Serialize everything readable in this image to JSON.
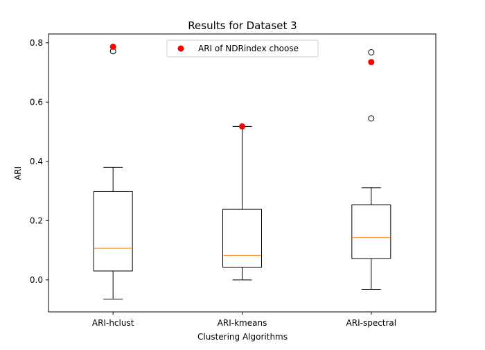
{
  "chart_data": {
    "type": "box",
    "title": "Results for Dataset 3",
    "xlabel": "Clustering Algorithms",
    "ylabel": "ARI",
    "ylim": [
      -0.108,
      0.83
    ],
    "yticks": [
      0.0,
      0.2,
      0.4,
      0.6,
      0.8
    ],
    "ytick_labels": [
      "0.0",
      "0.2",
      "0.4",
      "0.6",
      "0.8"
    ],
    "grid": false,
    "legend_position": "top-center",
    "legend": [
      {
        "label": "ARI of NDRindex choose",
        "marker": "circle",
        "color": "#ff0000"
      }
    ],
    "box_color": "#000000",
    "median_color": "#ff7f0e",
    "categories": [
      "ARI-hclust",
      "ARI-kmeans",
      "ARI-spectral"
    ],
    "boxes": [
      {
        "category": "ARI-hclust",
        "whisker_low": -0.065,
        "q1": 0.03,
        "median": 0.107,
        "q3": 0.298,
        "whisker_high": 0.38,
        "outliers": [
          0.772
        ],
        "highlight": 0.787
      },
      {
        "category": "ARI-kmeans",
        "whisker_low": 0.0,
        "q1": 0.043,
        "median": 0.083,
        "q3": 0.238,
        "whisker_high": 0.518,
        "outliers": [],
        "highlight": 0.518
      },
      {
        "category": "ARI-spectral",
        "whisker_low": -0.032,
        "q1": 0.072,
        "median": 0.143,
        "q3": 0.253,
        "whisker_high": 0.311,
        "outliers": [
          0.545,
          0.768
        ],
        "highlight": 0.735
      }
    ]
  }
}
